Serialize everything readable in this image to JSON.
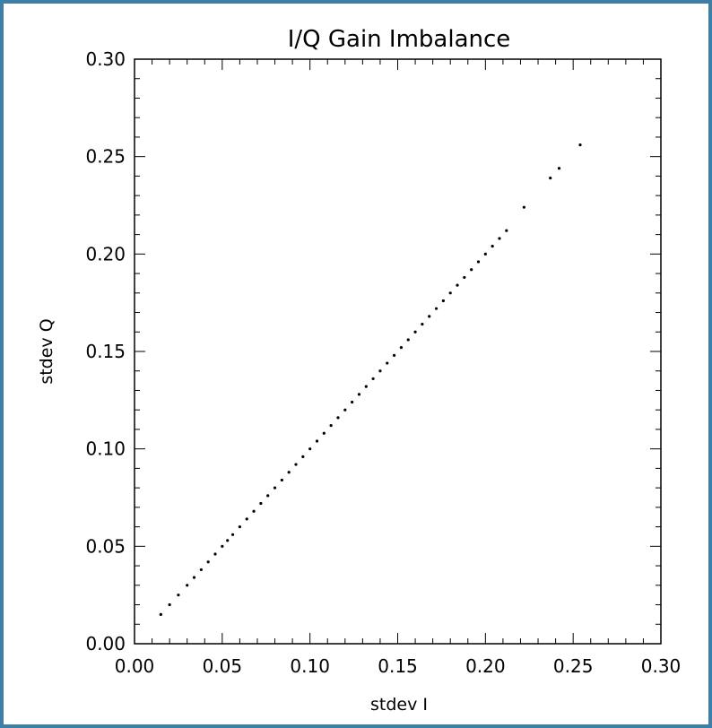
{
  "colors": {
    "frame_border": "#3f7fa6",
    "background": "#ffffff",
    "ink": "#000000"
  },
  "chart_data": {
    "type": "scatter",
    "title": "I/Q Gain Imbalance",
    "xlabel": "stdev I",
    "ylabel": "stdev Q",
    "xlim": [
      0.0,
      0.3
    ],
    "ylim": [
      0.0,
      0.3
    ],
    "x_ticks": [
      "0.00",
      "0.05",
      "0.10",
      "0.15",
      "0.20",
      "0.25",
      "0.30"
    ],
    "y_ticks": [
      "0.00",
      "0.05",
      "0.10",
      "0.15",
      "0.20",
      "0.25",
      "0.30"
    ],
    "grid": false,
    "series": [
      {
        "x": [
          0.015,
          0.02,
          0.025,
          0.03,
          0.034,
          0.038,
          0.042,
          0.046,
          0.05,
          0.053,
          0.056,
          0.06,
          0.064,
          0.068,
          0.072,
          0.076,
          0.08,
          0.084,
          0.088,
          0.092,
          0.096,
          0.1,
          0.104,
          0.108,
          0.112,
          0.116,
          0.12,
          0.124,
          0.128,
          0.132,
          0.136,
          0.14,
          0.144,
          0.148,
          0.152,
          0.156,
          0.16,
          0.164,
          0.168,
          0.172,
          0.176,
          0.18,
          0.184,
          0.188,
          0.192,
          0.196,
          0.2,
          0.204,
          0.208,
          0.212,
          0.222,
          0.237,
          0.242,
          0.254
        ],
        "y": [
          0.015,
          0.02,
          0.025,
          0.03,
          0.034,
          0.038,
          0.042,
          0.046,
          0.05,
          0.053,
          0.056,
          0.06,
          0.064,
          0.068,
          0.072,
          0.076,
          0.08,
          0.084,
          0.088,
          0.092,
          0.096,
          0.1,
          0.104,
          0.108,
          0.112,
          0.116,
          0.12,
          0.124,
          0.128,
          0.132,
          0.136,
          0.14,
          0.144,
          0.148,
          0.152,
          0.156,
          0.16,
          0.164,
          0.168,
          0.172,
          0.176,
          0.18,
          0.184,
          0.188,
          0.192,
          0.196,
          0.2,
          0.204,
          0.208,
          0.212,
          0.224,
          0.239,
          0.244,
          0.256
        ]
      }
    ]
  }
}
